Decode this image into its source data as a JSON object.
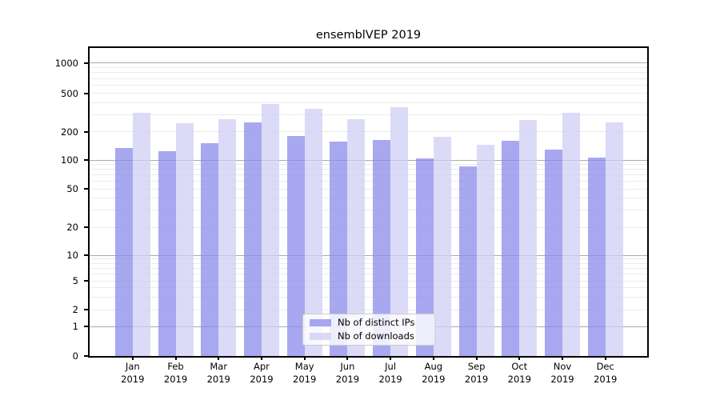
{
  "chart_data": {
    "type": "bar",
    "title": "ensemblVEP 2019",
    "categories": [
      "Jan 2019",
      "Feb 2019",
      "Mar 2019",
      "Apr 2019",
      "May 2019",
      "Jun 2019",
      "Jul 2019",
      "Aug 2019",
      "Sep 2019",
      "Oct 2019",
      "Nov 2019",
      "Dec 2019"
    ],
    "series": [
      {
        "name": "Nb of distinct IPs",
        "color": "#8b8beb",
        "values": [
          133,
          124,
          151,
          249,
          178,
          156,
          164,
          104,
          85,
          160,
          128,
          107
        ]
      },
      {
        "name": "Nb of downloads",
        "color": "#cfcff4",
        "values": [
          315,
          244,
          268,
          388,
          346,
          271,
          356,
          176,
          145,
          262,
          312,
          247
        ]
      }
    ],
    "bar_opacity": 0.75,
    "y_axis": {
      "scale": "symlog",
      "tick_values": [
        0,
        1,
        2,
        5,
        10,
        20,
        50,
        100,
        200,
        500,
        1000
      ],
      "tick_labels": [
        "0",
        "1",
        "2",
        "5",
        "10",
        "20",
        "50",
        "100",
        "200",
        "500",
        "1000"
      ],
      "major_gridlines": [
        1,
        10,
        100,
        1000
      ],
      "minor_gridlines": [
        2,
        3,
        4,
        5,
        6,
        7,
        8,
        9,
        20,
        30,
        40,
        50,
        60,
        70,
        80,
        90,
        200,
        300,
        400,
        500,
        600,
        700,
        800,
        900
      ],
      "major_grid_color": "#ababab",
      "minor_grid_color": "#ebebeb",
      "range_top": 1400
    },
    "legend_position": "inside-bottom-center",
    "grid": true
  }
}
